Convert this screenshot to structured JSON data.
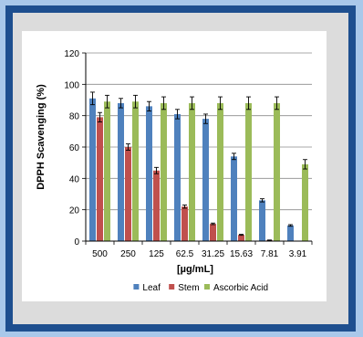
{
  "chart_data": {
    "type": "bar",
    "title": "",
    "xlabel": "[µg/mL]",
    "ylabel": "DPPH Scavenging (%)",
    "ylim": [
      0,
      120
    ],
    "yticks": [
      0,
      20,
      40,
      60,
      80,
      100,
      120
    ],
    "grid": true,
    "legend_position": "bottom",
    "error_bars": true,
    "categories": [
      "500",
      "250",
      "125",
      "62.5",
      "31.25",
      "15.63",
      "7.81",
      "3.91"
    ],
    "series": [
      {
        "name": "Leaf",
        "color": "#4f81bd",
        "values": [
          91,
          88,
          86,
          81,
          78,
          54,
          26,
          10
        ],
        "errors": [
          4,
          3,
          3,
          3,
          3,
          2,
          1,
          0.5
        ]
      },
      {
        "name": "Stem",
        "color": "#c0504d",
        "values": [
          79,
          60,
          45,
          22,
          11,
          4,
          0.5,
          0
        ],
        "errors": [
          3,
          2,
          2,
          1,
          0.5,
          0.3,
          0.2,
          0
        ]
      },
      {
        "name": "Ascorbic Acid",
        "color": "#9bbb59",
        "values": [
          89,
          89,
          88,
          88,
          88,
          88,
          88,
          49
        ],
        "errors": [
          4,
          4,
          4,
          4,
          4,
          4,
          4,
          3
        ]
      }
    ]
  }
}
